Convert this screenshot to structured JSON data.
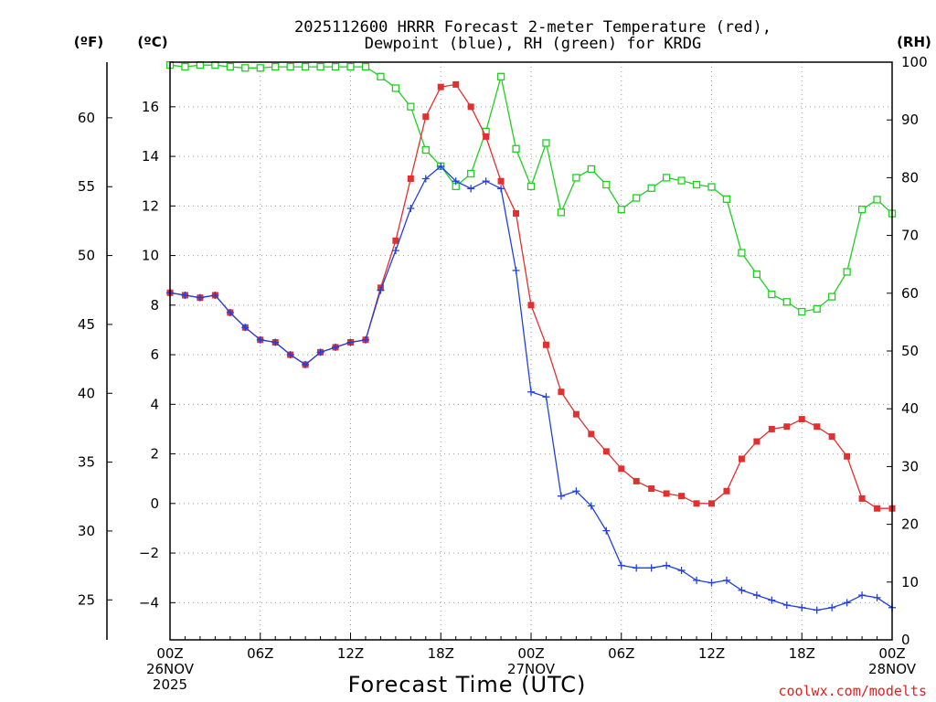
{
  "chart_data": {
    "type": "line",
    "title_line1": "2025112600 HRRR Forecast 2-meter Temperature (red),",
    "title_line2": "Dewpoint (blue), RH (green) for KRDG",
    "xlabel": "Forecast Time (UTC)",
    "credit": "coolwx.com/modelts",
    "units": {
      "fahrenheit": "(ºF)",
      "celsius": "(ºC)",
      "rh": "(RH)"
    },
    "ylim_c": [
      -5.5,
      17.8
    ],
    "ylim_rh": [
      0,
      100
    ],
    "xlim_hours": [
      0,
      48
    ],
    "c_ticks": [
      "-4",
      "-2",
      "0",
      "2",
      "4",
      "6",
      "8",
      "10",
      "12",
      "14",
      "16"
    ],
    "f_ticks": [
      "25",
      "30",
      "35",
      "40",
      "45",
      "50",
      "55",
      "60"
    ],
    "rh_ticks": [
      "0",
      "10",
      "20",
      "30",
      "40",
      "50",
      "60",
      "70",
      "80",
      "90",
      "100"
    ],
    "x_ticks": [
      {
        "hour": 0,
        "lines": [
          "00Z",
          "26NOV",
          "2025"
        ]
      },
      {
        "hour": 6,
        "lines": [
          "06Z"
        ]
      },
      {
        "hour": 12,
        "lines": [
          "12Z"
        ]
      },
      {
        "hour": 18,
        "lines": [
          "18Z"
        ]
      },
      {
        "hour": 24,
        "lines": [
          "00Z",
          "27NOV"
        ]
      },
      {
        "hour": 30,
        "lines": [
          "06Z"
        ]
      },
      {
        "hour": 36,
        "lines": [
          "12Z"
        ]
      },
      {
        "hour": 42,
        "lines": [
          "18Z"
        ]
      },
      {
        "hour": 48,
        "lines": [
          "00Z",
          "28NOV"
        ]
      }
    ],
    "hours": [
      0,
      1,
      2,
      3,
      4,
      5,
      6,
      7,
      8,
      9,
      10,
      11,
      12,
      13,
      14,
      15,
      16,
      17,
      18,
      19,
      20,
      21,
      22,
      23,
      24,
      25,
      26,
      27,
      28,
      29,
      30,
      31,
      32,
      33,
      34,
      35,
      36,
      37,
      38,
      39,
      40,
      41,
      42,
      43,
      44,
      45,
      46,
      47,
      48
    ],
    "series": [
      {
        "name": "Temperature (°C)",
        "color": "#e03030",
        "marker": "filled-square",
        "values": [
          8.5,
          8.4,
          8.3,
          8.4,
          7.7,
          7.1,
          6.6,
          6.5,
          6.0,
          5.6,
          6.1,
          6.3,
          6.5,
          6.6,
          8.7,
          10.6,
          13.1,
          15.6,
          16.8,
          16.9,
          16.0,
          14.8,
          13.0,
          11.7,
          8.0,
          6.4,
          4.5,
          3.6,
          2.8,
          2.1,
          1.4,
          0.9,
          0.6,
          0.4,
          0.3,
          0.0,
          0.0,
          0.5,
          1.8,
          2.5,
          3.0,
          3.1,
          3.4,
          3.1,
          2.7,
          1.9,
          0.2,
          -0.2,
          -0.2
        ]
      },
      {
        "name": "Dewpoint (°C)",
        "color": "#2040e0",
        "marker": "plus",
        "values": [
          8.5,
          8.4,
          8.3,
          8.4,
          7.7,
          7.1,
          6.6,
          6.5,
          6.0,
          5.6,
          6.1,
          6.3,
          6.5,
          6.6,
          8.6,
          10.2,
          11.9,
          13.1,
          13.6,
          13.0,
          12.7,
          13.0,
          12.7,
          9.4,
          4.5,
          4.3,
          0.3,
          0.5,
          -0.1,
          -1.1,
          -2.5,
          -2.6,
          -2.6,
          -2.5,
          -2.7,
          -3.1,
          -3.2,
          -3.1,
          -3.5,
          -3.7,
          -3.9,
          -4.1,
          -4.2,
          -4.3,
          -4.2,
          -4.0,
          -3.7,
          -3.8,
          -4.2
        ]
      },
      {
        "name": "Relative Humidity (%)",
        "color": "#20d020",
        "marker": "open-square",
        "values": [
          99.5,
          99.2,
          99.5,
          99.5,
          99.2,
          99.0,
          99.0,
          99.2,
          99.2,
          99.2,
          99.2,
          99.2,
          99.2,
          99.2,
          97.5,
          95.5,
          92.3,
          84.8,
          82.0,
          78.5,
          80.7,
          88.0,
          97.5,
          85.0,
          78.5,
          86.0,
          74.0,
          80.0,
          81.5,
          78.8,
          74.5,
          76.5,
          78.2,
          80.0,
          79.5,
          78.8,
          78.4,
          76.3,
          67.0,
          63.3,
          59.8,
          58.5,
          56.8,
          57.3,
          59.4,
          63.7,
          74.5,
          76.2,
          73.8
        ]
      }
    ]
  }
}
